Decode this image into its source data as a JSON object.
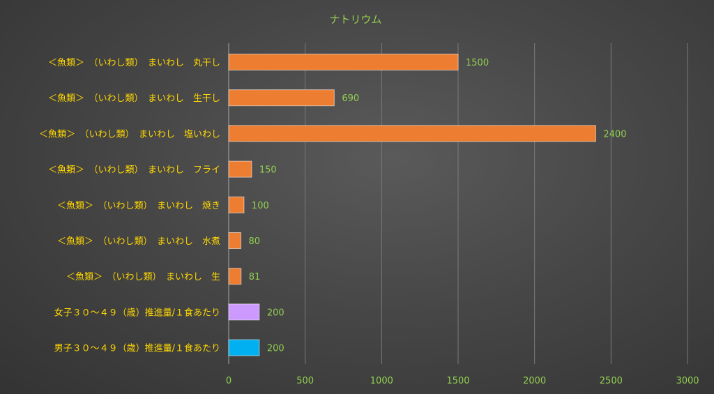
{
  "chart_data": {
    "type": "bar",
    "orientation": "horizontal",
    "title": "ナトリウム",
    "categories": [
      "＜魚類＞　（いわし類）　まいわし　丸干し",
      "＜魚類＞　（いわし類）　まいわし　生干し",
      "＜魚類＞　（いわし類）　まいわし　塩いわし",
      "＜魚類＞　（いわし類）　まいわし　フライ",
      "＜魚類＞　（いわし類）　まいわし　焼き",
      "＜魚類＞　（いわし類）　まいわし　水煮",
      "＜魚類＞　（いわし類）　まいわし　生",
      "女子３０～４９（歳）推進量/１食あたり",
      "男子３０～４９（歳）推進量/１食あたり"
    ],
    "values": [
      1500,
      690,
      2400,
      150,
      100,
      80,
      81,
      200,
      200
    ],
    "bar_colors": [
      "#ed7d31",
      "#ed7d31",
      "#ed7d31",
      "#ed7d31",
      "#ed7d31",
      "#ed7d31",
      "#ed7d31",
      "#cc99ff",
      "#00b0f0"
    ],
    "xlim": [
      0,
      3000
    ],
    "xticks": [
      0,
      500,
      1000,
      1500,
      2000,
      2500,
      3000
    ],
    "grid": true,
    "legend": "none",
    "colors": {
      "title": "#92d050",
      "category_label": "#ffd700",
      "data_label": "#92d050",
      "tick_label": "#92d050",
      "grid": "#7a7a7a"
    }
  }
}
